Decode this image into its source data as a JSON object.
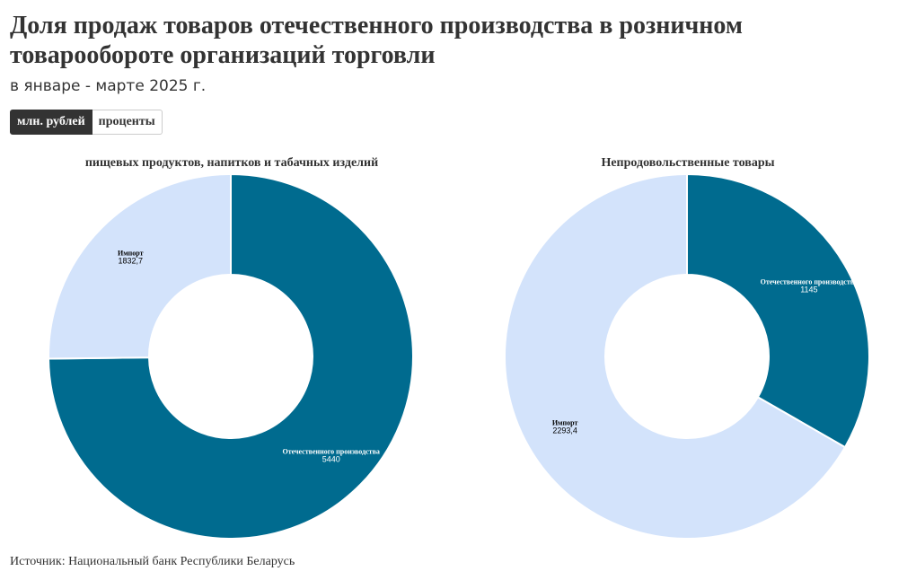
{
  "header": {
    "title": "Доля продаж товаров отечественного производства в розничном товарообороте организаций торговли",
    "subtitle": "в январе - марте 2025 г."
  },
  "toggle": {
    "options": [
      {
        "label": "млн. рублей",
        "active": true
      },
      {
        "label": "проценты",
        "active": false
      }
    ]
  },
  "colors": {
    "domestic": "#006b8f",
    "import": "#d3e3fb",
    "separator": "#ffffff"
  },
  "chart_data": [
    {
      "type": "pie",
      "variant": "donut",
      "title": "пищевых продуктов, напитков и табачных изделий",
      "slices": [
        {
          "label": "Отечественного производства",
          "value": 5440,
          "value_text": "5440",
          "color": "#006b8f"
        },
        {
          "label": "Импорт",
          "value": 1832.7,
          "value_text": "1832,7",
          "color": "#d3e3fb"
        }
      ]
    },
    {
      "type": "pie",
      "variant": "donut",
      "title": "Непродовольственные товары",
      "slices": [
        {
          "label": "Отечественного производства",
          "value": 1145,
          "value_text": "1145",
          "color": "#006b8f"
        },
        {
          "label": "Импорт",
          "value": 2293.4,
          "value_text": "2293,4",
          "color": "#d3e3fb"
        }
      ]
    }
  ],
  "footer": {
    "source": "Источник: Национальный банк Республики Беларусь"
  }
}
